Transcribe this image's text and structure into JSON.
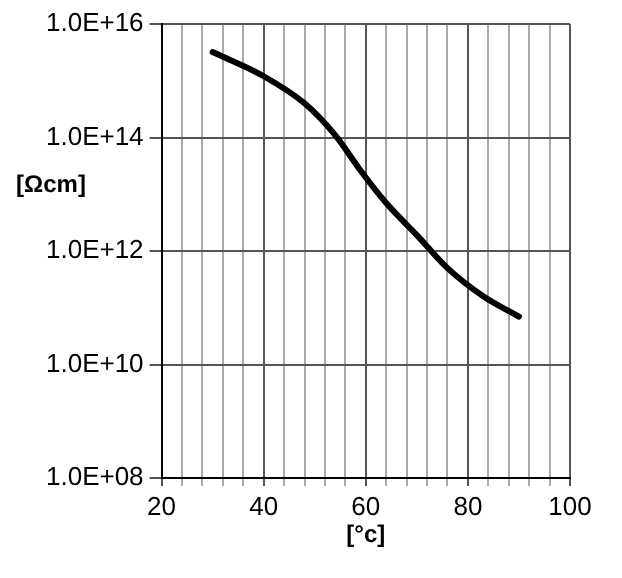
{
  "chart_data": {
    "type": "line",
    "xlabel": "[°c]",
    "ylabel": "[Ωcm]",
    "x": [
      30,
      40,
      48,
      54,
      59,
      64,
      70,
      76,
      83,
      90
    ],
    "series": [
      {
        "color": "#000000",
        "values": [
          3200000000000000.0,
          1200000000000000.0,
          400000000000000.0,
          110000000000000.0,
          26000000000000.0,
          7000000000000.0,
          1900000000000.0,
          500000000000.0,
          160000000000.0,
          70000000000.0
        ]
      }
    ],
    "xlim": [
      20,
      100
    ],
    "xticks": [
      20,
      {
        "value": 24,
        "label": null
      },
      {
        "value": 28,
        "label": null
      },
      {
        "value": 32,
        "label": null
      },
      {
        "value": 36,
        "label": null
      },
      40,
      {
        "value": 44,
        "label": null
      },
      {
        "value": 48,
        "label": null
      },
      {
        "value": 52,
        "label": null
      },
      {
        "value": 56,
        "label": null
      },
      60,
      {
        "value": 64,
        "label": null
      },
      {
        "value": 68,
        "label": null
      },
      {
        "value": 72,
        "label": null
      },
      {
        "value": 76,
        "label": null
      },
      80,
      {
        "value": 84,
        "label": null
      },
      {
        "value": 88,
        "label": null
      },
      {
        "value": 92,
        "label": null
      },
      {
        "value": 96,
        "label": null
      },
      100
    ],
    "ylim": [
      100000000.0,
      1e+16
    ],
    "yticks": [
      {
        "value": 100000000.0,
        "label": "1.0E+08"
      },
      {
        "value": 10000000000.0,
        "label": "1.0E+10"
      },
      {
        "value": 1000000000000.0,
        "label": "1.0E+12"
      },
      {
        "value": 100000000000000.0,
        "label": "1.0E+14"
      },
      {
        "value": 1e+16,
        "label": "1.0E+16"
      }
    ],
    "log": "y",
    "grid": true,
    "legend": false,
    "marker": "none",
    "line_style": "solid"
  }
}
